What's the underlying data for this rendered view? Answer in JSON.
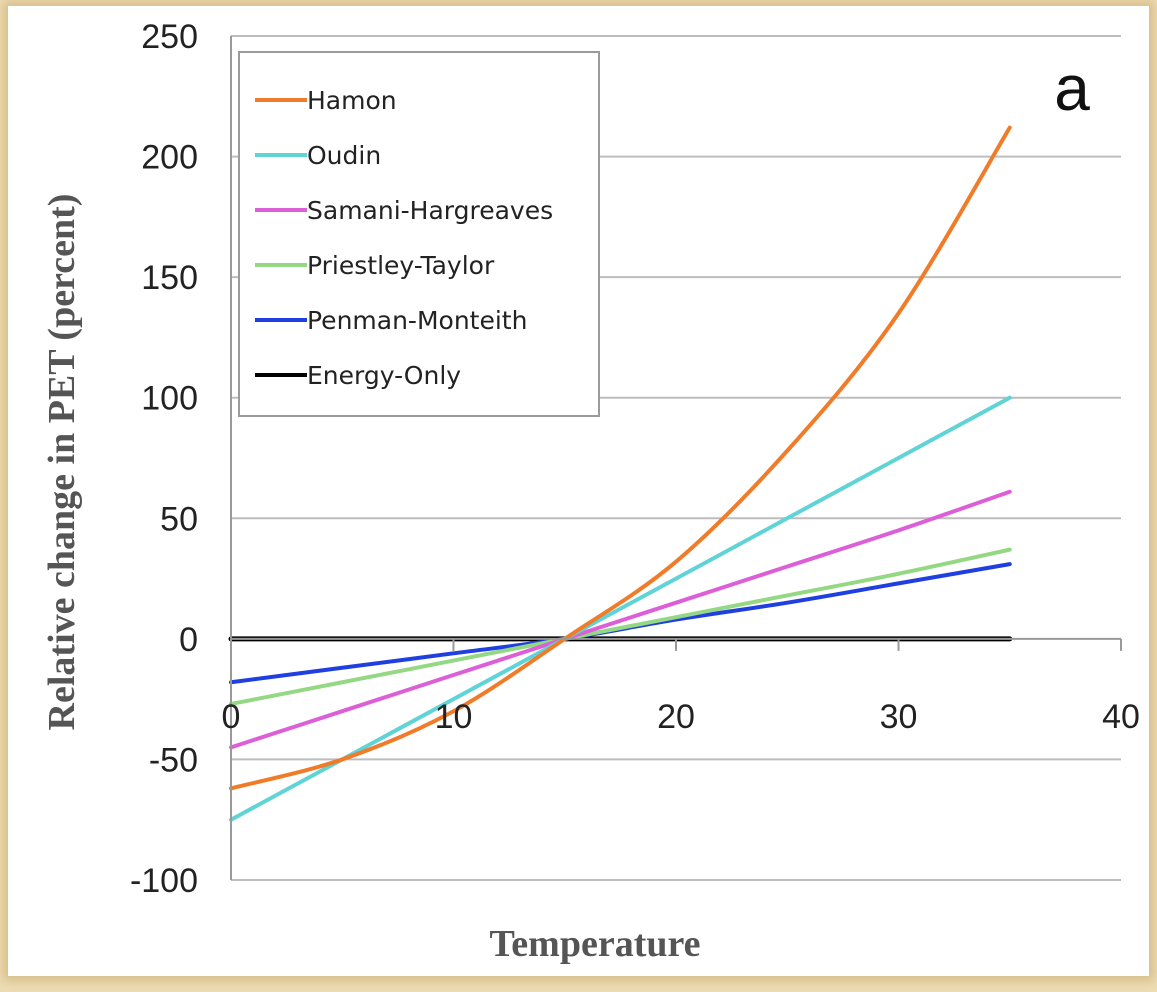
{
  "chart_data": {
    "type": "line",
    "xlabel": "Temperature",
    "ylabel": "Relative change in PET (percent)",
    "panel_label": "a",
    "xlim": [
      0,
      40
    ],
    "ylim": [
      -100,
      250
    ],
    "x_ticks": [
      0,
      10,
      20,
      30,
      40
    ],
    "y_ticks": [
      -100,
      -50,
      0,
      50,
      100,
      150,
      200,
      250
    ],
    "grid": "horizontal",
    "legend_position": "top-left",
    "x": [
      0,
      5,
      10,
      15,
      20,
      25,
      30,
      35
    ],
    "series": [
      {
        "name": "Hamon",
        "color": "#f07c2a",
        "values": [
          -62,
          -50,
          -30,
          0,
          32,
          78,
          135,
          212
        ]
      },
      {
        "name": "Oudin",
        "color": "#5fd3d6",
        "values": [
          -75,
          -50,
          -25,
          0,
          25,
          50,
          75,
          100
        ]
      },
      {
        "name": "Samani-Hargreaves",
        "color": "#dc5fd8",
        "values": [
          -45,
          -30,
          -15,
          0,
          15,
          30,
          45,
          61
        ]
      },
      {
        "name": "Priestley-Taylor",
        "color": "#94d884",
        "values": [
          -27,
          -18,
          -9,
          0,
          9,
          18,
          27,
          37
        ]
      },
      {
        "name": "Penman-Monteith",
        "color": "#1f3fe0",
        "values": [
          -18,
          -12,
          -6,
          0,
          8,
          15,
          23,
          31
        ]
      },
      {
        "name": "Energy-Only",
        "color": "#000000",
        "values": [
          0,
          0,
          0,
          0,
          0,
          0,
          0,
          0
        ]
      }
    ]
  }
}
